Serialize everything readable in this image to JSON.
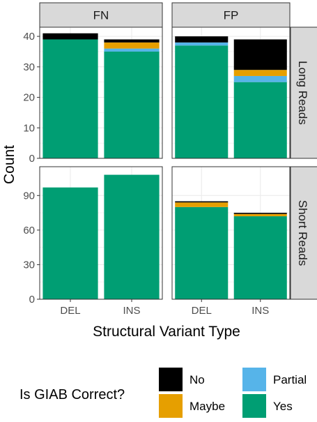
{
  "chart_data": {
    "type": "bar",
    "stacked": true,
    "xlabel": "Structural Variant Type",
    "ylabel": "Count",
    "categories": [
      "DEL",
      "INS"
    ],
    "facet_columns": [
      "FN",
      "FP"
    ],
    "facet_rows": [
      "Long Reads",
      "Short Reads"
    ],
    "panels": [
      {
        "column": "FN",
        "row": "Long Reads",
        "ylim": [
          0,
          43
        ],
        "yticks": [
          0,
          10,
          20,
          30,
          40
        ],
        "series": [
          {
            "name": "Yes",
            "values": [
              39,
              35
            ]
          },
          {
            "name": "Partial",
            "values": [
              0,
              1
            ]
          },
          {
            "name": "Maybe",
            "values": [
              0,
              2
            ]
          },
          {
            "name": "No",
            "values": [
              2,
              1
            ]
          }
        ]
      },
      {
        "column": "FP",
        "row": "Long Reads",
        "ylim": [
          0,
          43
        ],
        "yticks": [
          0,
          10,
          20,
          30,
          40
        ],
        "series": [
          {
            "name": "Yes",
            "values": [
              37,
              25
            ]
          },
          {
            "name": "Partial",
            "values": [
              1,
              2
            ]
          },
          {
            "name": "Maybe",
            "values": [
              0,
              2
            ]
          },
          {
            "name": "No",
            "values": [
              2,
              10
            ]
          }
        ]
      },
      {
        "column": "FN",
        "row": "Short Reads",
        "ylim": [
          0,
          115
        ],
        "yticks": [
          0,
          30,
          60,
          90
        ],
        "series": [
          {
            "name": "Yes",
            "values": [
              97,
              108
            ]
          },
          {
            "name": "Partial",
            "values": [
              0,
              0
            ]
          },
          {
            "name": "Maybe",
            "values": [
              0,
              0
            ]
          },
          {
            "name": "No",
            "values": [
              0,
              0
            ]
          }
        ]
      },
      {
        "column": "FP",
        "row": "Short Reads",
        "ylim": [
          0,
          115
        ],
        "yticks": [
          0,
          30,
          60,
          90
        ],
        "series": [
          {
            "name": "Yes",
            "values": [
              80,
              72
            ]
          },
          {
            "name": "Partial",
            "values": [
              0,
              0
            ]
          },
          {
            "name": "Maybe",
            "values": [
              4,
              2
            ]
          },
          {
            "name": "No",
            "values": [
              1,
              1
            ]
          }
        ]
      }
    ],
    "legend": {
      "title": "Is GIAB Correct?",
      "position": "bottom",
      "entries": [
        {
          "name": "No",
          "color": "#000000"
        },
        {
          "name": "Partial",
          "color": "#56B4E9"
        },
        {
          "name": "Maybe",
          "color": "#E69F00"
        },
        {
          "name": "Yes",
          "color": "#009E73"
        }
      ]
    },
    "grid": true,
    "colors": {
      "Yes": "#009E73",
      "Partial": "#56B4E9",
      "Maybe": "#E69F00",
      "No": "#000000",
      "strip_background": "#d9d9d9",
      "grid": "#ebebeb"
    }
  }
}
